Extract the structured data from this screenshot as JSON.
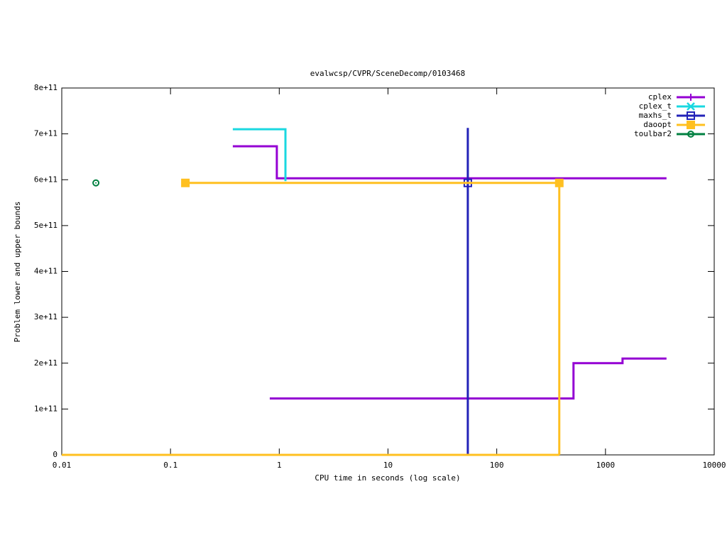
{
  "chart_data": {
    "type": "line",
    "title": "evalwcsp/CVPR/SceneDecomp/0103468",
    "x_label": "CPU time in seconds (log scale)",
    "y_label": "Problem lower and upper bounds",
    "x_log": true,
    "xlim": [
      0.01,
      10000
    ],
    "xticks": [
      0.01,
      0.1,
      1,
      10,
      100,
      1000,
      10000
    ],
    "ylim": [
      0,
      800000000000
    ],
    "yticks": [
      0,
      {
        "value": 100000000000,
        "label": "1e+11"
      },
      {
        "value": 200000000000,
        "label": "2e+11"
      },
      {
        "value": 300000000000,
        "label": "3e+11"
      },
      {
        "value": 400000000000,
        "label": "4e+11"
      },
      {
        "value": 500000000000,
        "label": "5e+11"
      },
      {
        "value": 600000000000,
        "label": "6e+11"
      },
      {
        "value": 700000000000,
        "label": "7e+11"
      },
      {
        "value": 800000000000,
        "label": "8e+11"
      }
    ],
    "legend": "top-right",
    "series": [
      {
        "name": "cplex",
        "color": "#9400d3",
        "marker": "plus",
        "x": [
          0.374,
          0.95,
          0.95,
          3640,
          null,
          0.818,
          508,
          508,
          1435,
          1435,
          3640
        ],
        "values": [
          673000000000,
          673000000000,
          603000000000,
          603000000000,
          null,
          123000000000,
          123000000000,
          200000000000,
          200000000000,
          210000000000,
          210000000000
        ],
        "markers": {
          "x": [],
          "values": []
        }
      },
      {
        "name": "cplex_t",
        "color": "#1ad8e0",
        "marker": "cross",
        "x": [
          0.374,
          1.14,
          1.14
        ],
        "values": [
          710000000000,
          710000000000,
          597000000000
        ],
        "markers": {
          "x": [],
          "values": []
        }
      },
      {
        "name": "maxhs_t",
        "color": "#2222b8",
        "marker": "square",
        "x": [
          54.2,
          54.2
        ],
        "values": [
          0,
          713000000000
        ],
        "markers": {
          "x": [
            54.2
          ],
          "values": [
            593000000000
          ]
        }
      },
      {
        "name": "daoopt",
        "color": "#ffc020",
        "marker": "filled-square",
        "x": [
          0.137,
          376,
          376,
          null,
          0.01,
          376
        ],
        "values": [
          593000000000,
          593000000000,
          0,
          null,
          0,
          0
        ],
        "markers": {
          "x": [
            0.137,
            376
          ],
          "values": [
            593000000000,
            593000000000
          ]
        }
      },
      {
        "name": "toulbar2",
        "color": "#008040",
        "marker": "circle",
        "x": [],
        "values": [],
        "markers": {
          "x": [
            0.0206
          ],
          "values": [
            593000000000
          ]
        }
      }
    ]
  }
}
